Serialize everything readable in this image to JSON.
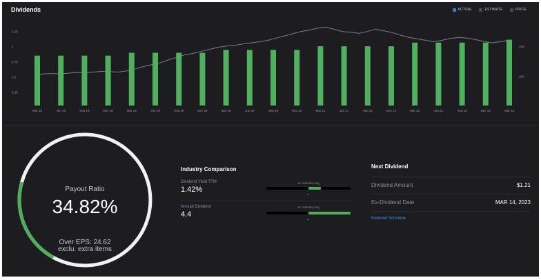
{
  "header": {
    "title": "Dividends"
  },
  "legend": [
    {
      "label": "ACTUAL",
      "color": "#3a7bd5"
    },
    {
      "label": "ESTIMATE",
      "color": "#4a4d57"
    },
    {
      "label": "PRICE",
      "color": "#4a4d57"
    }
  ],
  "chart_data": {
    "type": "bar",
    "categories": [
      "Mar 18",
      "Jun 18",
      "Sep 18",
      "Dec 18",
      "Mar 19",
      "Jun 19",
      "Sep 19",
      "Dec 19",
      "Mar 20",
      "Jun 20",
      "Sep 20",
      "Dec 20",
      "Mar 21",
      "Jun 21",
      "Sep 21",
      "Dec 21",
      "Mar 22",
      "Jun 22",
      "Sep 22",
      "Dec 22",
      "Mar 23"
    ],
    "values": [
      0.69,
      0.69,
      0.69,
      0.69,
      0.73,
      0.73,
      0.73,
      0.73,
      0.77,
      0.77,
      0.77,
      0.77,
      0.82,
      0.82,
      0.82,
      0.82,
      0.87,
      0.87,
      0.87,
      0.87,
      0.91
    ],
    "yticks": [
      "1.25",
      "1",
      "0.75",
      "0.5",
      "0.25"
    ],
    "ylim": [
      0,
      1.25
    ],
    "y2ticks": [
      "250",
      "200"
    ],
    "bar_color": "#4fb05e",
    "price_color": "#7d7f87",
    "price": [
      128,
      130,
      131,
      130,
      132,
      134,
      133,
      135,
      137,
      136,
      135,
      138,
      143,
      150,
      155,
      160,
      168,
      175,
      182,
      186,
      192,
      197,
      203,
      206,
      208,
      212,
      215,
      218,
      222,
      228,
      234,
      240,
      246,
      250,
      255,
      258,
      252,
      246,
      244,
      241,
      246,
      252,
      248,
      243,
      236,
      230,
      226,
      222,
      218,
      222,
      227,
      230,
      228,
      224,
      219,
      215,
      218,
      222
    ]
  },
  "gauge": {
    "label": "Payout Ratio",
    "value": "34.82%",
    "fraction": 0.3482,
    "sub1": "Over EPS: 24.62",
    "sub2": "exclu. extra items",
    "accent": "#4fae5c"
  },
  "industry": {
    "title": "Industry Comparison",
    "rows": [
      {
        "label": "Dividend Yield TTM",
        "value": "1.42%",
        "vs_label": "vs. Industry Avg"
      },
      {
        "label": "Annual Dividend",
        "value": "4.4",
        "vs_label": "vs. Industry Avg"
      }
    ]
  },
  "next_dividend": {
    "title": "Next Dividend",
    "rows": [
      {
        "label": "Dividend Amount",
        "value": "$1.21"
      },
      {
        "label": "Ex-Dividend Date",
        "value": "MAR 14, 2023"
      }
    ],
    "link": "Dividend Schedule"
  }
}
